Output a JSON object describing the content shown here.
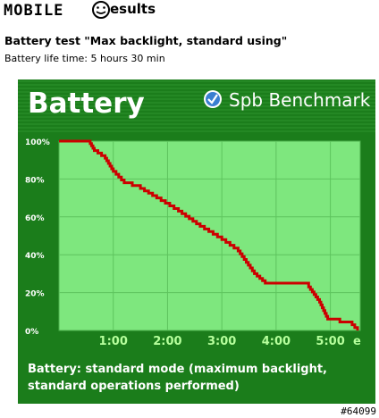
{
  "header": {
    "logo_text": "MOBILE",
    "results_label": "esults"
  },
  "test_title": "Battery test \"Max backlight, standard using\"",
  "battery_life": "Battery life time: 5 hours 30 min",
  "watermark": "#64099",
  "colors": {
    "panel_bg": "#1b7d1b",
    "plot_bg": "#7ee77e",
    "line": "#cc0000",
    "text": "#ffffff"
  },
  "chart_data": {
    "type": "line",
    "title": "Battery",
    "brand": "Spb Benchmark",
    "caption_line1": "Battery: standard mode (maximum backlight,",
    "caption_line2": "standard operations performed)",
    "xlim": [
      0,
      5.55
    ],
    "ylim": [
      0,
      100
    ],
    "x_ticks": [
      {
        "value": 1,
        "label": "1:00"
      },
      {
        "value": 2,
        "label": "2:00"
      },
      {
        "value": 3,
        "label": "3:00"
      },
      {
        "value": 4,
        "label": "4:00"
      },
      {
        "value": 5,
        "label": "5:00"
      }
    ],
    "y_ticks": [
      {
        "value": 100,
        "label": "100%"
      },
      {
        "value": 80,
        "label": "80%"
      },
      {
        "value": 60,
        "label": "60%"
      },
      {
        "value": 40,
        "label": "40%"
      },
      {
        "value": 20,
        "label": "20%"
      },
      {
        "value": 0,
        "label": "0%"
      }
    ],
    "x_axis_suffix": "e",
    "grid": true,
    "series": [
      {
        "x": [
          0,
          0.55,
          0.65,
          0.85,
          1.0,
          1.2,
          1.5,
          1.8,
          2.2,
          2.6,
          3.0,
          3.3,
          3.6,
          3.8,
          4.4,
          4.6,
          4.8,
          4.95,
          5.4,
          5.5
        ],
        "y": [
          100,
          100,
          95,
          91,
          84,
          78,
          75,
          70,
          63,
          55,
          48,
          42,
          30,
          25,
          25,
          23,
          15,
          6,
          3,
          0
        ]
      }
    ]
  }
}
